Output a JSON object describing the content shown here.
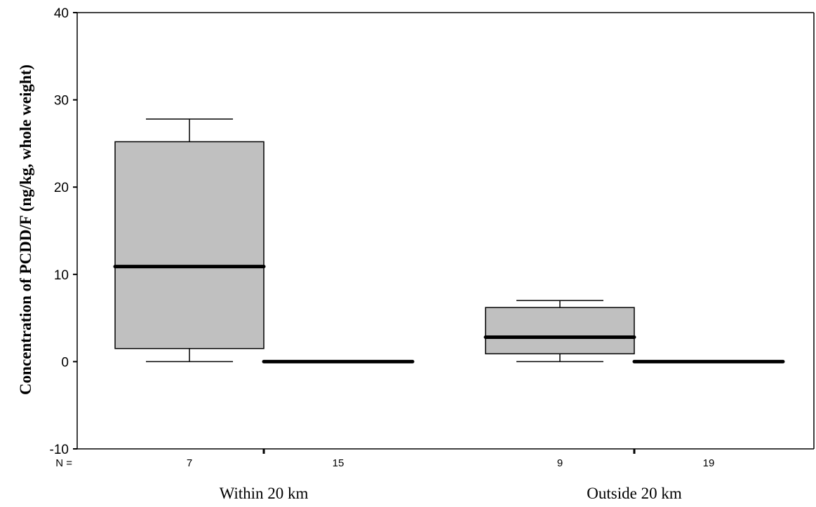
{
  "chart_data": {
    "type": "box",
    "ylabel": "Concentration of PCDD/F (ng/kg, whole weight)",
    "ylim": [
      -10,
      40
    ],
    "yticks": [
      -10,
      0,
      10,
      20,
      30,
      40
    ],
    "n_prefix": "N =",
    "groups": [
      "Within 20 km",
      "Outside 20 km"
    ],
    "boxes": [
      {
        "group": "Within 20 km",
        "n": "7",
        "min": 0,
        "q1": 1.5,
        "median": 10.9,
        "q3": 25.2,
        "max": 27.8,
        "fill": "#c0c0c0"
      },
      {
        "group": "Within 20 km",
        "n": "15",
        "min": 0,
        "q1": 0,
        "median": 0,
        "q3": 0,
        "max": 0,
        "fill": "#c0c0c0"
      },
      {
        "group": "Outside 20 km",
        "n": "9",
        "min": 0,
        "q1": 0.9,
        "median": 2.8,
        "q3": 6.2,
        "max": 7.0,
        "fill": "#c0c0c0"
      },
      {
        "group": "Outside 20 km",
        "n": "19",
        "min": 0,
        "q1": 0,
        "median": 0,
        "q3": 0,
        "max": 0,
        "fill": "#c0c0c0"
      }
    ]
  }
}
